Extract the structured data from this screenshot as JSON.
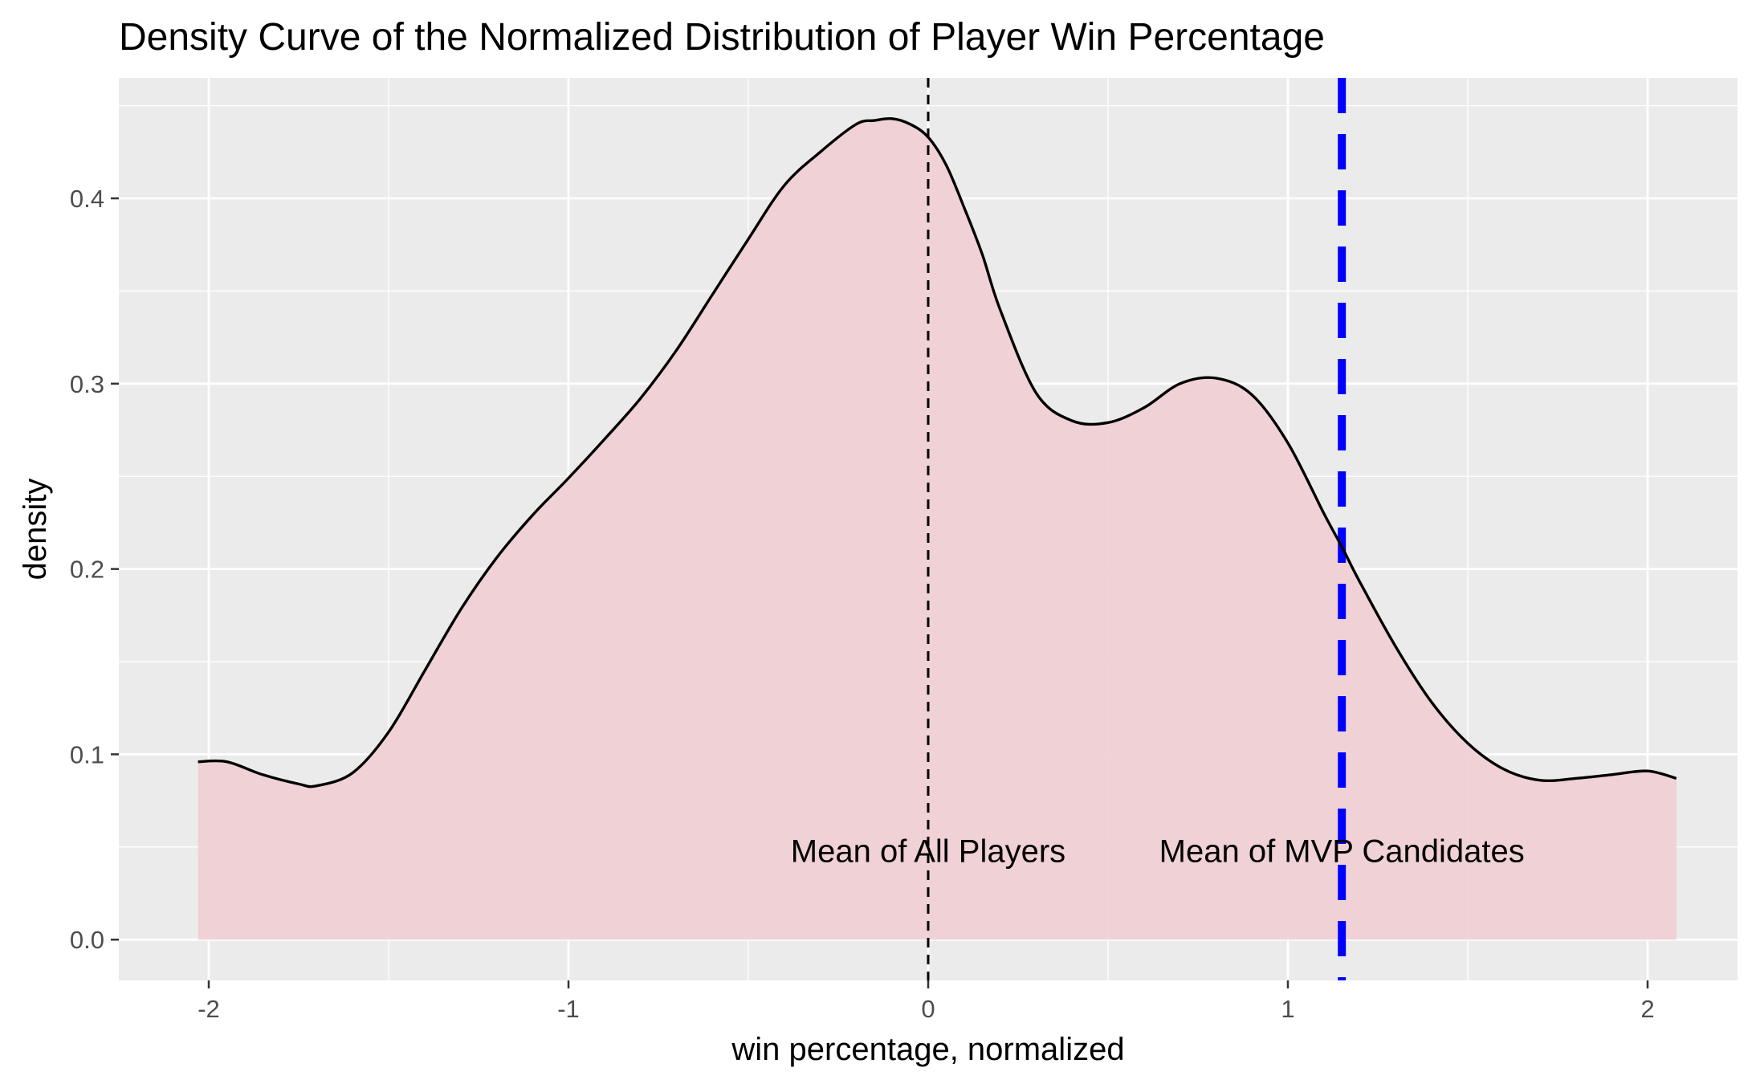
{
  "chart_data": {
    "type": "area",
    "title": "Density Curve of the Normalized Distribution of Player Win Percentage",
    "xlabel": "win percentage, normalized",
    "ylabel": "density",
    "xlim": [
      -2.25,
      2.25
    ],
    "ylim": [
      -0.022,
      0.465
    ],
    "x_ticks": [
      -2,
      -1,
      0,
      1,
      2
    ],
    "x_tick_labels": [
      "-2",
      "-1",
      "0",
      "1",
      "2"
    ],
    "y_ticks": [
      0.0,
      0.1,
      0.2,
      0.3,
      0.4
    ],
    "y_tick_labels": [
      "0.0",
      "0.1",
      "0.2",
      "0.3",
      "0.4"
    ],
    "grid": true,
    "x_minor_grid": [
      -1.5,
      -0.5,
      0.5,
      1.5
    ],
    "y_minor_grid": [
      0.05,
      0.15,
      0.25,
      0.35,
      0.45
    ],
    "x": [
      -2.03,
      -1.95,
      -1.85,
      -1.75,
      -1.7,
      -1.6,
      -1.5,
      -1.4,
      -1.3,
      -1.2,
      -1.1,
      -1.0,
      -0.9,
      -0.8,
      -0.7,
      -0.6,
      -0.5,
      -0.4,
      -0.3,
      -0.2,
      -0.15,
      -0.1,
      -0.05,
      0.0,
      0.05,
      0.1,
      0.15,
      0.2,
      0.3,
      0.4,
      0.5,
      0.6,
      0.7,
      0.8,
      0.9,
      1.0,
      1.1,
      1.15,
      1.2,
      1.3,
      1.4,
      1.5,
      1.6,
      1.7,
      1.8,
      1.9,
      2.0,
      2.08
    ],
    "y": [
      0.096,
      0.096,
      0.089,
      0.084,
      0.083,
      0.09,
      0.112,
      0.145,
      0.178,
      0.206,
      0.229,
      0.249,
      0.27,
      0.292,
      0.318,
      0.348,
      0.378,
      0.407,
      0.425,
      0.44,
      0.442,
      0.443,
      0.44,
      0.433,
      0.418,
      0.395,
      0.37,
      0.34,
      0.295,
      0.28,
      0.279,
      0.287,
      0.3,
      0.303,
      0.294,
      0.268,
      0.23,
      0.212,
      0.193,
      0.158,
      0.128,
      0.106,
      0.092,
      0.086,
      0.087,
      0.089,
      0.091,
      0.087
    ],
    "series": [
      {
        "name": "",
        "fill_color": "#f0d0d4",
        "line_color": "#000000"
      }
    ],
    "reference_lines": [
      {
        "x": 0.0,
        "color": "#000000",
        "style": "dashed",
        "label": "Mean of All Players"
      },
      {
        "x": 1.15,
        "color": "#0000ff",
        "style": "dashed",
        "label": "Mean of MVP Candidates"
      }
    ],
    "annotations": [
      {
        "text": "Mean of All Players",
        "x": 0.0,
        "y": 0.048
      },
      {
        "text": "Mean of MVP Candidates",
        "x": 1.15,
        "y": 0.048
      }
    ],
    "colors": {
      "panel_background": "#ebebeb",
      "grid": "#ffffff",
      "area_fill": "#f0d0d4"
    }
  }
}
